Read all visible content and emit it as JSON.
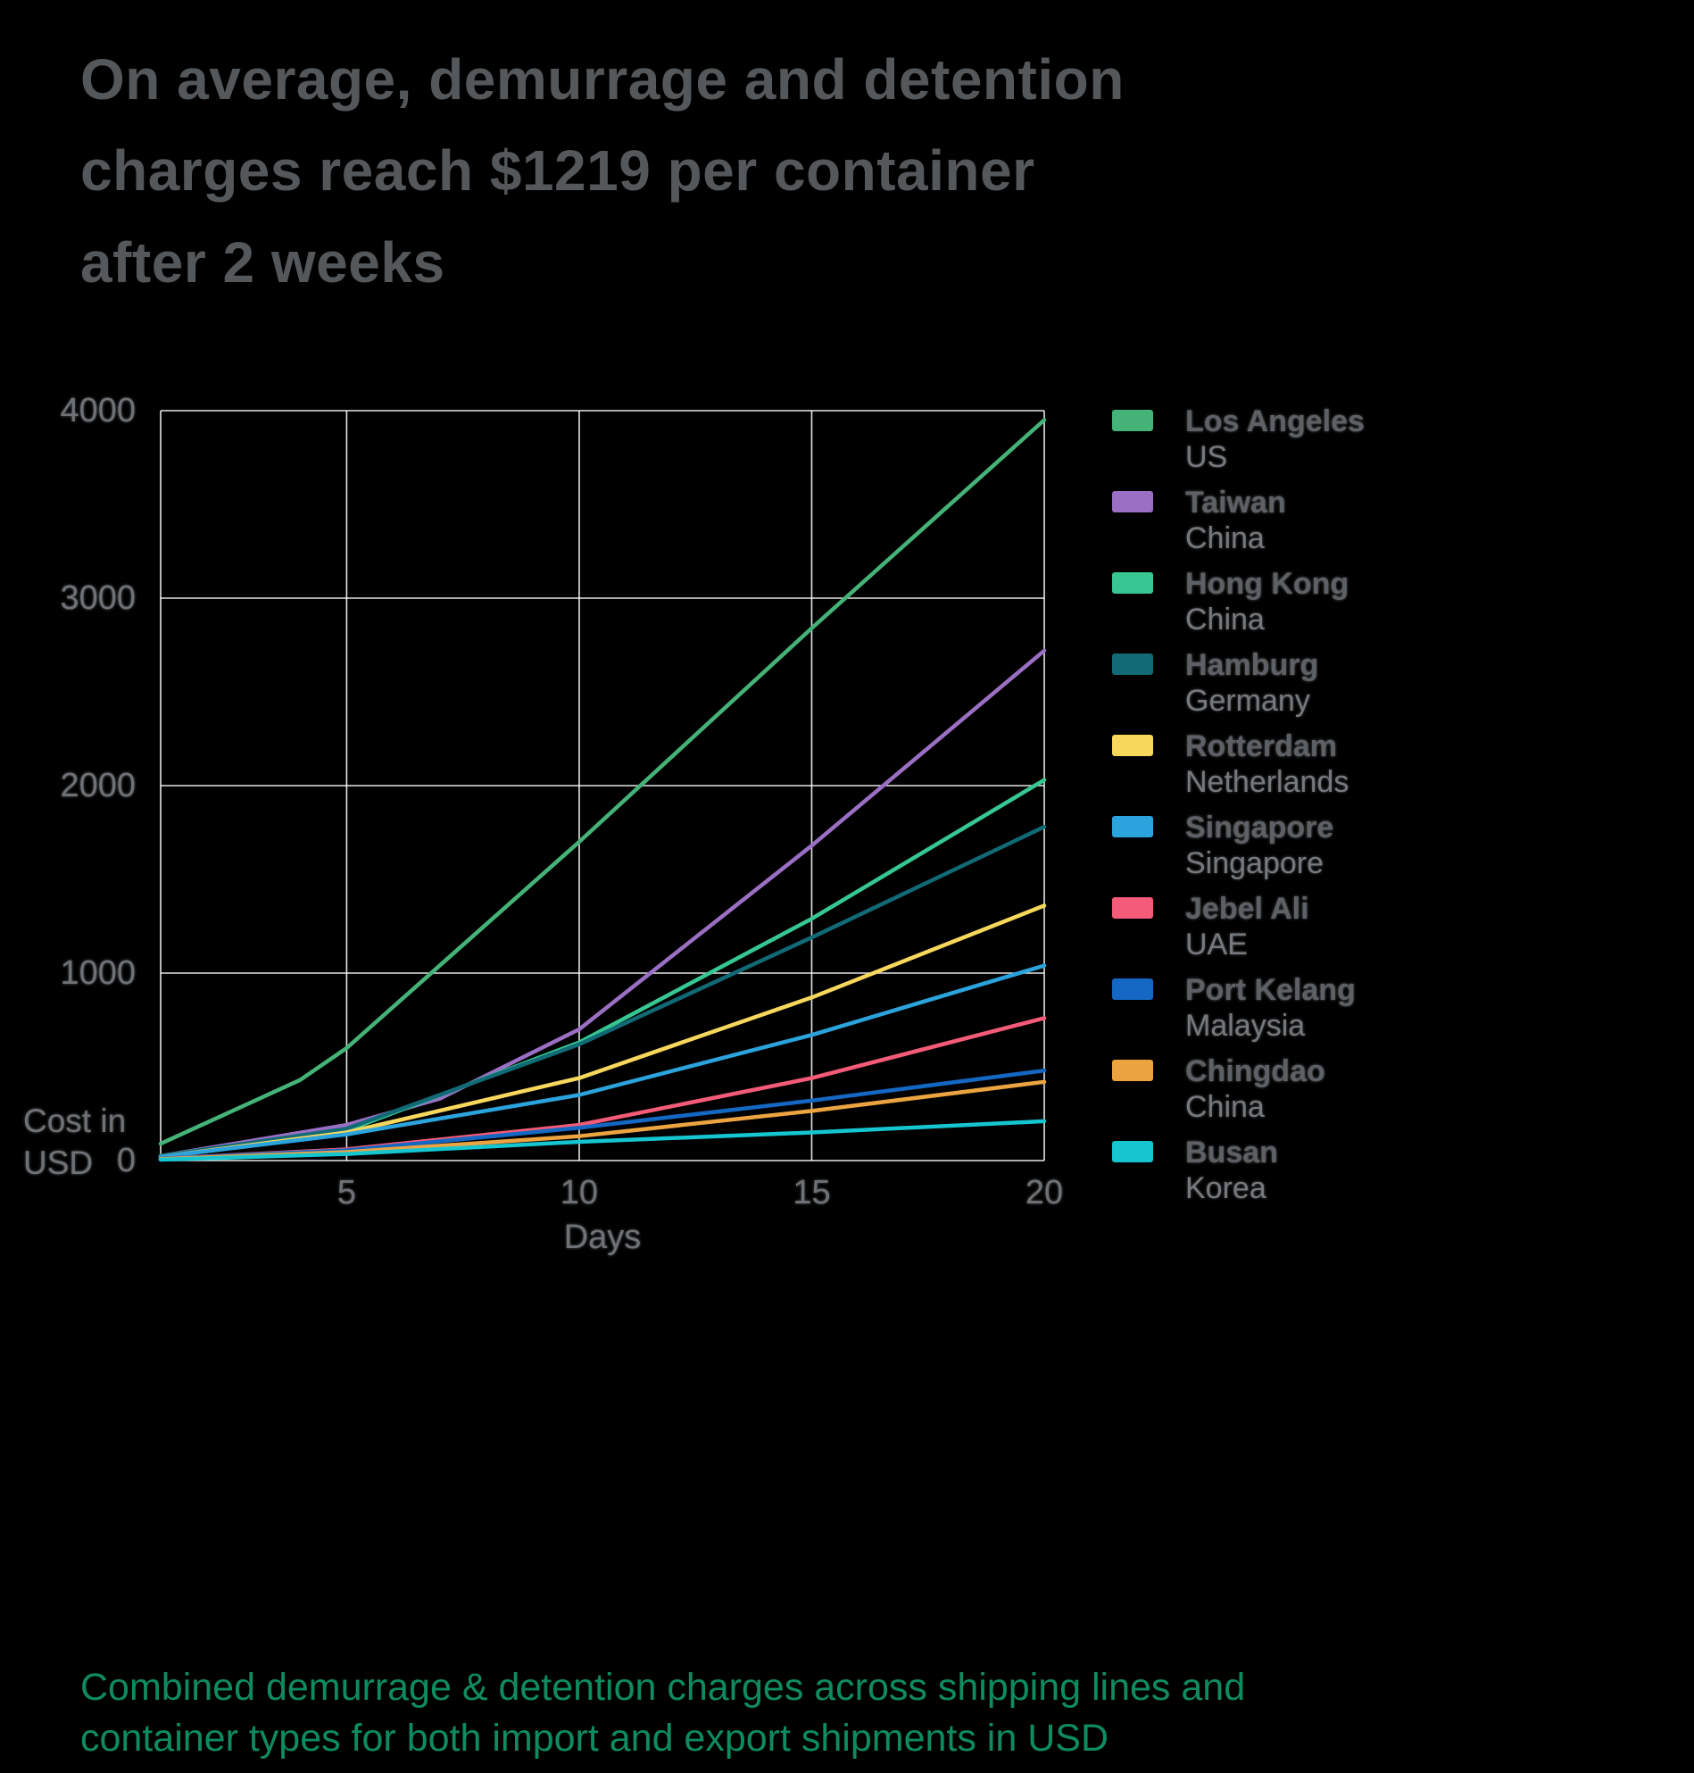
{
  "title": "On average, demurrage and detention charges reach $1219 per container after 2 weeks",
  "caption": "Combined demurrage & detention charges across shipping lines and container types for both import and export shipments in USD",
  "colors": {
    "background": "#000000",
    "title_text": "#55585b",
    "axis_text": "#6e7276",
    "legend_name_text": "#5d6165",
    "legend_sub_text": "#75797d",
    "caption_text": "#0f8b60",
    "gridline": "#ffffff"
  },
  "chart_data": {
    "type": "line",
    "title": "On average, demurrage and detention charges reach $1219 per container after 2 weeks",
    "xlabel": "Days",
    "ylabel": "Cost in USD",
    "xlim": [
      1,
      20
    ],
    "ylim": [
      0,
      4000
    ],
    "xticks": [
      5,
      10,
      15,
      20
    ],
    "yticks": [
      0,
      1000,
      2000,
      3000,
      4000
    ],
    "grid": true,
    "legend_position": "right",
    "average_after_2_weeks_usd": 1219,
    "series": [
      {
        "name": "Los Angeles",
        "sublabel": "US",
        "color": "#45b377",
        "x": [
          1,
          4,
          5,
          10,
          15,
          20
        ],
        "values": [
          90,
          430,
          600,
          1700,
          2840,
          3950
        ]
      },
      {
        "name": "Taiwan",
        "sublabel": "China",
        "color": "#9a6fc4",
        "x": [
          1,
          5,
          7,
          10,
          15,
          20
        ],
        "values": [
          25,
          190,
          330,
          700,
          1680,
          2720
        ]
      },
      {
        "name": "Hong Kong",
        "sublabel": "China",
        "color": "#36c792",
        "x": [
          1,
          5,
          10,
          15,
          20
        ],
        "values": [
          25,
          160,
          630,
          1290,
          2030
        ]
      },
      {
        "name": "Hamburg",
        "sublabel": "Germany",
        "color": "#116a75",
        "x": [
          1,
          5,
          10,
          15,
          20
        ],
        "values": [
          25,
          170,
          620,
          1190,
          1780
        ]
      },
      {
        "name": "Rotterdam",
        "sublabel": "Netherlands",
        "color": "#f7d75c",
        "x": [
          1,
          5,
          10,
          15,
          20
        ],
        "values": [
          20,
          150,
          440,
          870,
          1360
        ]
      },
      {
        "name": "Singapore",
        "sublabel": "Singapore",
        "color": "#2ba3dc",
        "x": [
          1,
          5,
          10,
          15,
          20
        ],
        "values": [
          20,
          140,
          350,
          670,
          1040
        ]
      },
      {
        "name": "Jebel Ali",
        "sublabel": "UAE",
        "color": "#f45b78",
        "x": [
          1,
          5,
          10,
          15,
          20
        ],
        "values": [
          10,
          60,
          190,
          440,
          760
        ]
      },
      {
        "name": "Port Kelang",
        "sublabel": "Malaysia",
        "color": "#1467c2",
        "x": [
          1,
          5,
          10,
          15,
          20
        ],
        "values": [
          10,
          55,
          175,
          320,
          480
        ]
      },
      {
        "name": "Chingdao",
        "sublabel": "China",
        "color": "#eca440",
        "x": [
          1,
          5,
          10,
          15,
          20
        ],
        "values": [
          8,
          45,
          130,
          265,
          420
        ]
      },
      {
        "name": "Busan",
        "sublabel": "Korea",
        "color": "#15c5cf",
        "x": [
          1,
          5,
          10,
          15,
          20
        ],
        "values": [
          5,
          35,
          100,
          150,
          210
        ]
      }
    ]
  }
}
